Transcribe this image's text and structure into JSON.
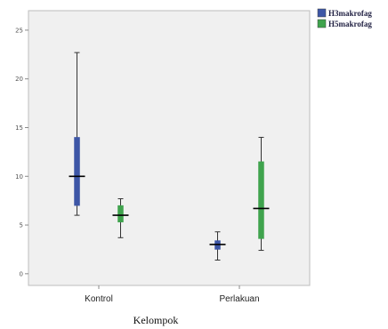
{
  "chart_data": {
    "type": "boxplot",
    "xlabel": "Kelompok",
    "ylabel": "",
    "ylim": [
      -1.2,
      27
    ],
    "yticks": [
      0,
      5,
      10,
      15,
      20,
      25
    ],
    "ytick_labels": [
      "0",
      "5",
      "10",
      "15",
      "20",
      "25"
    ],
    "categories": [
      "Kontrol",
      "Perlakuan"
    ],
    "legend_position": "top-right outside plot",
    "series": [
      {
        "name": "H3makrofag",
        "color": "#3d56a6",
        "boxes": [
          {
            "min": 6.0,
            "q1": 7.0,
            "median": 10.0,
            "q3": 14.0,
            "max": 22.7
          },
          {
            "min": 1.4,
            "q1": 2.5,
            "median": 3.0,
            "q3": 3.4,
            "max": 4.3
          }
        ]
      },
      {
        "name": "H5makrofag",
        "color": "#3fa34d",
        "boxes": [
          {
            "min": 3.7,
            "q1": 5.3,
            "median": 6.0,
            "q3": 7.0,
            "max": 7.7
          },
          {
            "min": 2.4,
            "q1": 3.6,
            "median": 6.7,
            "q3": 11.5,
            "max": 14.0
          }
        ]
      }
    ]
  }
}
